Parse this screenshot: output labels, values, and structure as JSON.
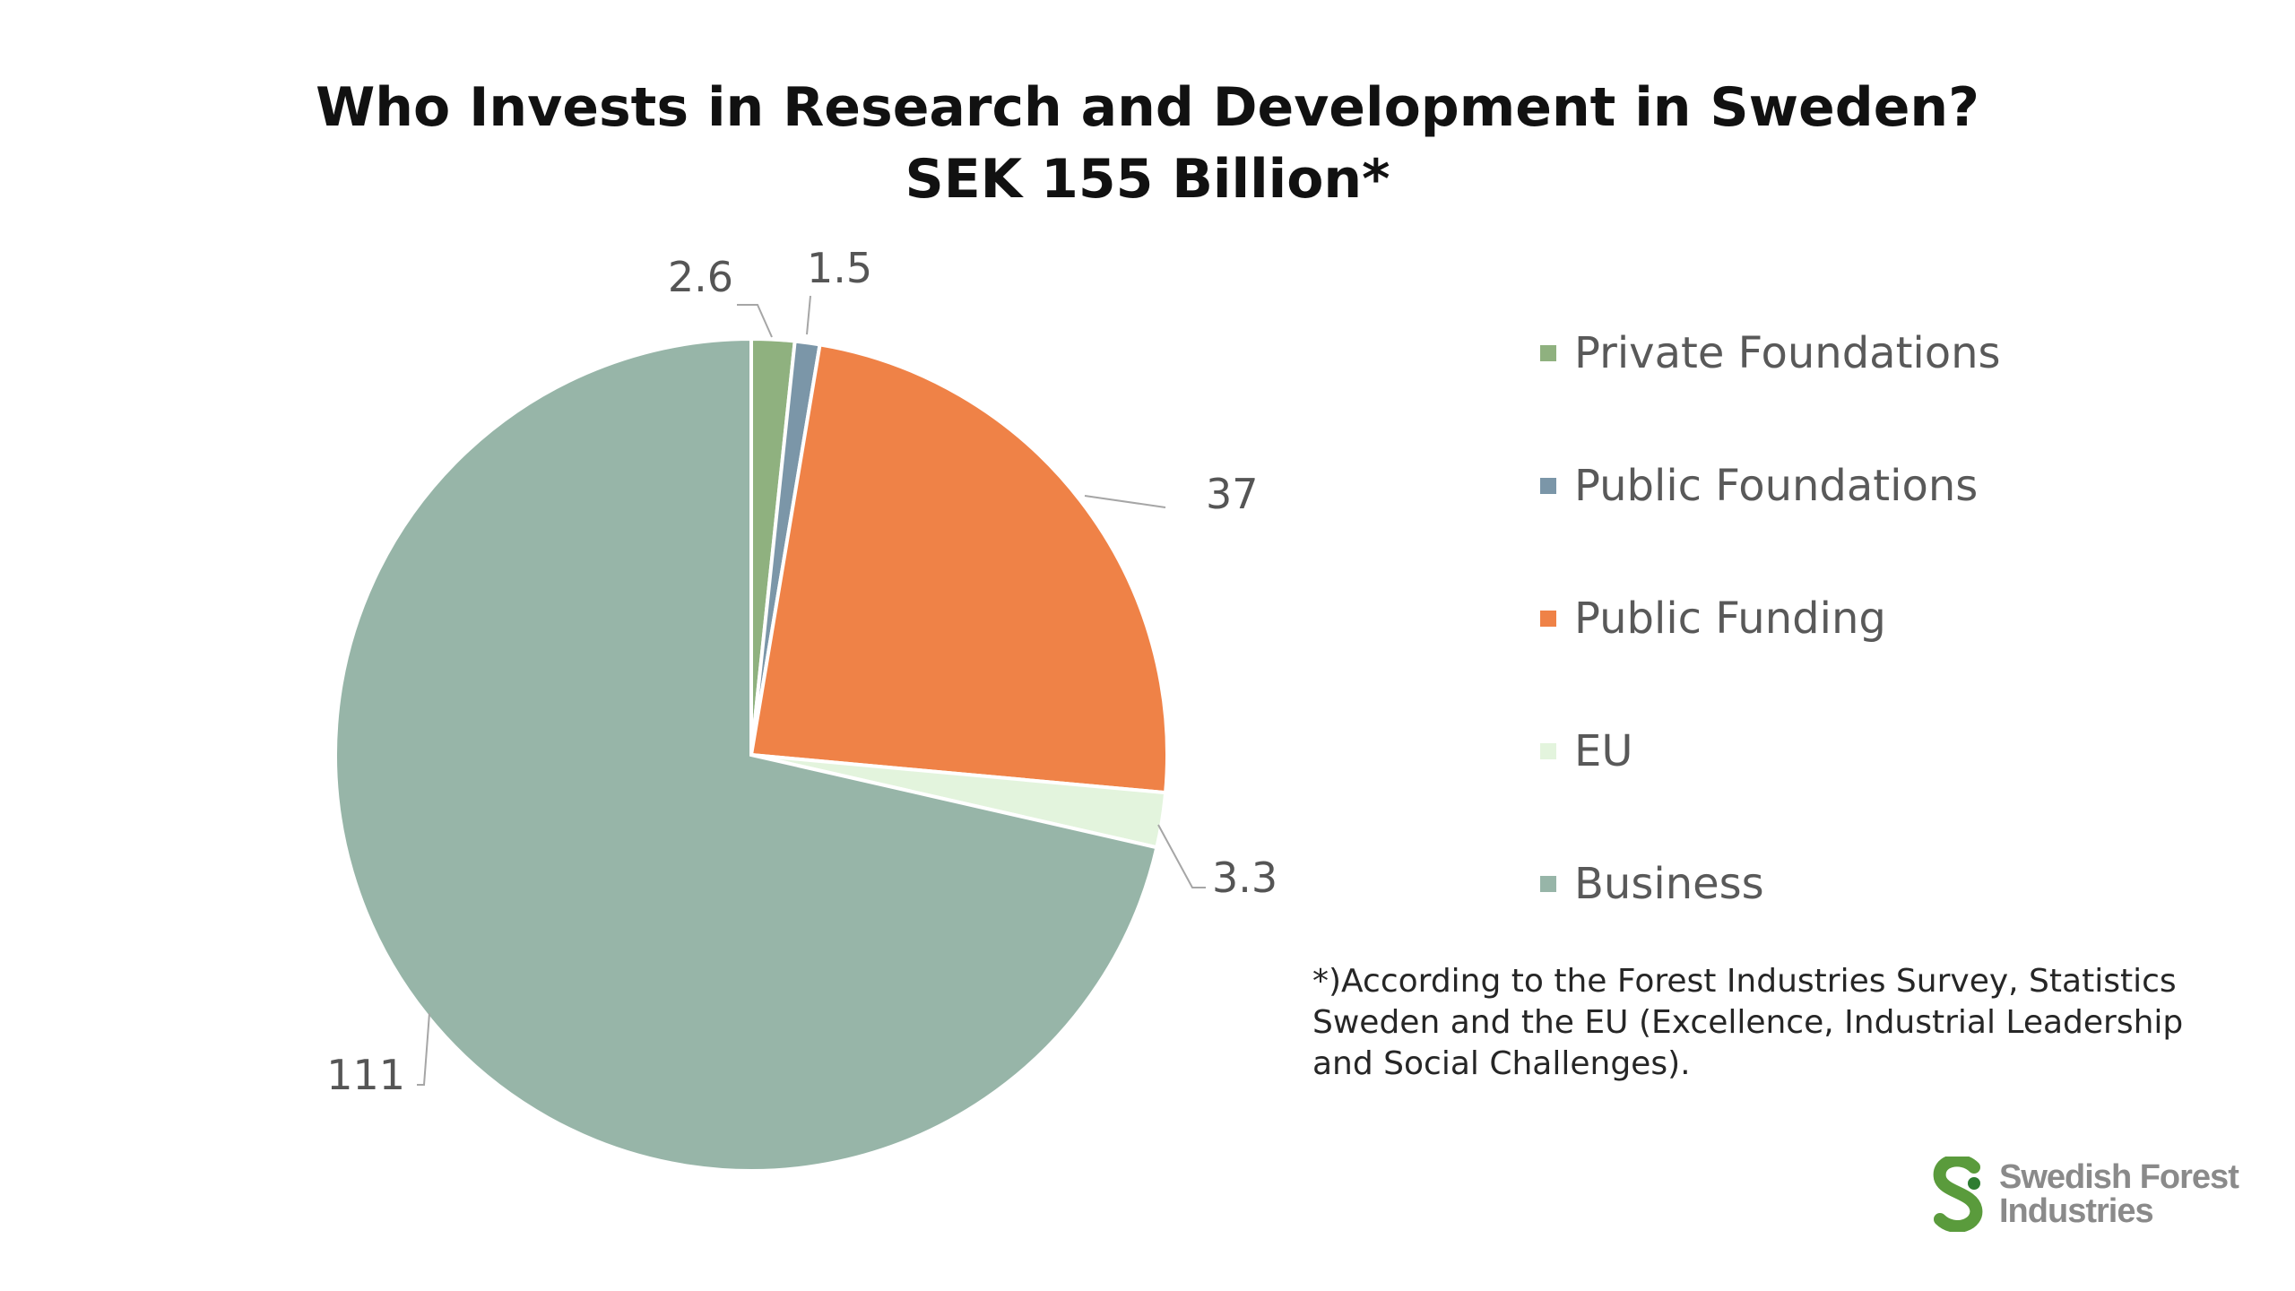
{
  "chart_data": {
    "type": "pie",
    "title_lines": [
      "Who Invests in Research and Development in Sweden?",
      "SEK 155 Billion*"
    ],
    "slices": [
      {
        "name": "Private Foundations",
        "value": 2.6,
        "label": "2.6",
        "color": "#8fb17f"
      },
      {
        "name": "Public Foundations",
        "value": 1.5,
        "label": "1.5",
        "color": "#7b96a8"
      },
      {
        "name": "Public Funding",
        "value": 37,
        "label": "37",
        "color": "#ef8247"
      },
      {
        "name": "EU",
        "value": 3.3,
        "label": "3.3",
        "color": "#e3f4dd"
      },
      {
        "name": "Business",
        "value": 111,
        "label": "111",
        "color": "#97b5a8"
      }
    ],
    "legend_position": "right"
  },
  "footnote": "*)According to the Forest Industries Survey, Statistics Sweden and the EU (Excellence, Industrial Leadership and Social Challenges).",
  "logo": {
    "line1": "Swedish Forest",
    "line2": "Industries",
    "icon": "swedish-forest-industries-logo",
    "colors": [
      "#5a9b3c",
      "#2e7d32"
    ]
  }
}
